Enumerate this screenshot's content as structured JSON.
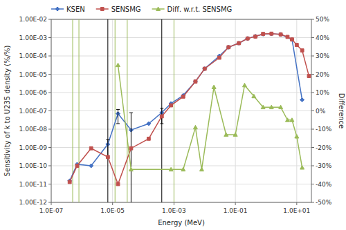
{
  "chart_data": {
    "type": "line",
    "xlabel": "Energy (MeV)",
    "ylabel": "Sensitivity of k to U235 density (%/%)",
    "y2label": "Difference",
    "log": true,
    "grid": true,
    "legend": "upper left",
    "xlim": [
      1e-07,
      30
    ],
    "ylim": [
      1e-12,
      0.01
    ],
    "y2lim": [
      -50,
      50
    ],
    "xticks": [
      {
        "value": 1e-07,
        "label": "1.0E-07"
      },
      {
        "value": 1e-05,
        "label": "1.0E-05"
      },
      {
        "value": 0.001,
        "label": "1.0E-03"
      },
      {
        "value": 0.1,
        "label": "1.0E-01"
      },
      {
        "value": 10.0,
        "label": "1.0E+01"
      }
    ],
    "yticks": [
      {
        "value": 1e-12,
        "label": "1.00E-12"
      },
      {
        "value": 1e-11,
        "label": "1.00E-11"
      },
      {
        "value": 1e-10,
        "label": "1.00E-10"
      },
      {
        "value": 1e-09,
        "label": "1.00E-09"
      },
      {
        "value": 1e-08,
        "label": "1.00E-08"
      },
      {
        "value": 1e-07,
        "label": "1.00E-07"
      },
      {
        "value": 1e-06,
        "label": "1.00E-06"
      },
      {
        "value": 1e-05,
        "label": "1.00E-05"
      },
      {
        "value": 0.0001,
        "label": "1.00E-04"
      },
      {
        "value": 0.001,
        "label": "1.00E-03"
      },
      {
        "value": 0.01,
        "label": "1.00E-02"
      }
    ],
    "y2ticks": [
      {
        "value": -50,
        "label": "-50%"
      },
      {
        "value": -40,
        "label": "-40%"
      },
      {
        "value": -30,
        "label": "-30%"
      },
      {
        "value": -20,
        "label": "-20%"
      },
      {
        "value": -10,
        "label": "-10%"
      },
      {
        "value": 0,
        "label": "0%"
      },
      {
        "value": 10,
        "label": "10%"
      },
      {
        "value": 20,
        "label": "20%"
      },
      {
        "value": 30,
        "label": "30%"
      },
      {
        "value": 40,
        "label": "40%"
      },
      {
        "value": 50,
        "label": "50%"
      }
    ],
    "reference_lines": [
      {
        "color": "#9BBB59",
        "x": [
          5e-07,
          8e-07,
          1.2e-05,
          3e-05,
          0.001
        ]
      },
      {
        "color": "#000000",
        "x": [
          7e-06,
          0.0004
        ]
      }
    ],
    "series": [
      {
        "name": "KSEN",
        "color": "#4472C4",
        "marker": "diamond",
        "x": [
          4e-07,
          7e-07,
          2e-06,
          7e-06,
          1.5e-05,
          4e-05,
          0.00015,
          0.0004,
          0.0008,
          0.002,
          0.005,
          0.01,
          0.03,
          0.06,
          0.13,
          0.25,
          0.45,
          0.8,
          1.5,
          3.0,
          7.0,
          15.0
        ],
        "values": [
          1.5e-11,
          1.2e-10,
          1e-10,
          1.5e-09,
          7e-08,
          9e-09,
          2e-08,
          8e-08,
          2.5e-07,
          7e-07,
          4e-06,
          2e-05,
          0.0001,
          0.0003,
          0.0005,
          0.0009,
          0.0012,
          0.00155,
          0.0016,
          0.0015,
          0.0008,
          4e-07
        ],
        "error_bars": {
          "color": "#000000",
          "x": [
            7e-06,
            1.5e-05,
            4e-05,
            0.0004
          ],
          "values": [
            1.5e-09,
            7e-08,
            9e-09,
            8e-08
          ],
          "errors": [
            1.2e-09,
            5e-08,
            7e-08,
            6e-08
          ]
        }
      },
      {
        "name": "SENSMG",
        "color": "#C0504D",
        "marker": "square",
        "x": [
          4e-07,
          7e-07,
          2e-06,
          7e-06,
          1.5e-05,
          4e-05,
          0.00015,
          0.0004,
          0.0008,
          0.002,
          0.005,
          0.01,
          0.03,
          0.06,
          0.13,
          0.25,
          0.45,
          0.8,
          1.5,
          3.0,
          5.0,
          7.0,
          10.0,
          15.0,
          25.0
        ],
        "values": [
          1.3e-11,
          1e-10,
          9e-10,
          3e-10,
          1e-11,
          9e-10,
          3e-09,
          5e-08,
          2e-07,
          6e-07,
          4e-06,
          2e-05,
          8e-05,
          0.0003,
          0.0005,
          0.0009,
          0.00115,
          0.0016,
          0.00165,
          0.0015,
          0.0011,
          0.0008,
          0.0004,
          0.0002,
          8e-06
        ]
      },
      {
        "name": "Diff. w.r.t. SENSMG",
        "color": "#9BBB59",
        "marker": "triangle",
        "axis": "y2",
        "x": [
          1.5e-05,
          4e-05,
          0.0008,
          0.002,
          0.005,
          0.008,
          0.02,
          0.05,
          0.1,
          0.2,
          0.4,
          0.8,
          1.5,
          3.0,
          5.0,
          7.0,
          10.0,
          15.0
        ],
        "values": [
          25,
          -32,
          -32,
          -32,
          -9,
          -32,
          13,
          -13,
          -13,
          14,
          8,
          2,
          2,
          2,
          -5,
          -5,
          -14,
          -31
        ]
      }
    ]
  }
}
